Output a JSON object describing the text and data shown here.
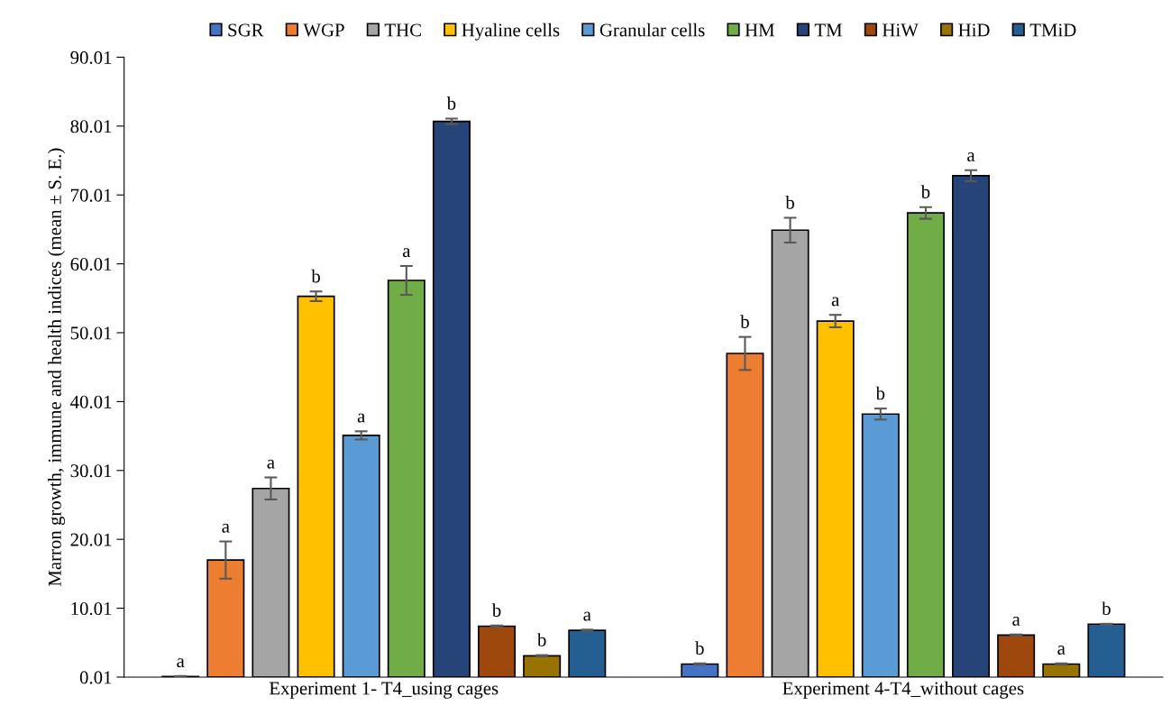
{
  "chart_data": {
    "type": "bar",
    "ylabel": "Marron growth, immune and health indices (mean ± S. E.)",
    "categories": [
      "Experiment 1- T4_using cages",
      "Experiment 4-T4_without cages"
    ],
    "ylim": [
      0.01,
      90.01
    ],
    "yticks": [
      0.01,
      10.01,
      20.01,
      30.01,
      40.01,
      50.01,
      60.01,
      70.01,
      80.01,
      90.01
    ],
    "grid": false,
    "legend": "top",
    "series": [
      {
        "name": "SGR",
        "color": "#4472c4",
        "values": [
          0.1,
          1.9
        ],
        "errors": [
          0.05,
          0.1
        ],
        "value_labels": [
          "a",
          "b"
        ]
      },
      {
        "name": "WGP",
        "color": "#ed7d31",
        "values": [
          17.0,
          47.0
        ],
        "errors": [
          2.7,
          2.4
        ],
        "value_labels": [
          "a",
          "b"
        ]
      },
      {
        "name": "THC",
        "color": "#a5a5a5",
        "values": [
          27.4,
          64.9
        ],
        "errors": [
          1.6,
          1.8
        ],
        "value_labels": [
          "a",
          "b"
        ]
      },
      {
        "name": "Hyaline cells",
        "color": "#ffc000",
        "values": [
          55.3,
          51.7
        ],
        "errors": [
          0.7,
          0.9
        ],
        "value_labels": [
          "b",
          "a"
        ]
      },
      {
        "name": "Granular cells",
        "color": "#5b9bd5",
        "values": [
          35.1,
          38.2
        ],
        "errors": [
          0.6,
          0.8
        ],
        "value_labels": [
          "a",
          "b"
        ]
      },
      {
        "name": "HM",
        "color": "#70ad47",
        "values": [
          57.6,
          67.4
        ],
        "errors": [
          2.1,
          0.85
        ],
        "value_labels": [
          "a",
          "b"
        ]
      },
      {
        "name": "TM",
        "color": "#264478",
        "values": [
          80.7,
          72.8
        ],
        "errors": [
          0.4,
          0.8
        ],
        "value_labels": [
          "b",
          "a"
        ]
      },
      {
        "name": "HiW",
        "color": "#9e480e",
        "values": [
          7.4,
          6.1
        ],
        "errors": [
          0.1,
          0.1
        ],
        "value_labels": [
          "b",
          "a"
        ]
      },
      {
        "name": "HiD",
        "color": "#997300",
        "values": [
          3.1,
          1.9
        ],
        "errors": [
          0.1,
          0.1
        ],
        "value_labels": [
          "b",
          "a"
        ]
      },
      {
        "name": "TMiD",
        "color": "#255e91",
        "values": [
          6.8,
          7.7
        ],
        "errors": [
          0.1,
          0.05
        ],
        "value_labels": [
          "a",
          "b"
        ]
      }
    ]
  }
}
